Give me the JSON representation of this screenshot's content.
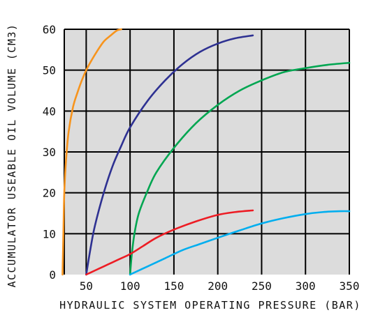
{
  "chart_data": {
    "type": "line",
    "xlabel": "HYDRAULIC SYSTEM OPERATING PRESSURE (BAR)",
    "ylabel": "ACCUMULATOR USEABLE OIL VOLUME (CM3)",
    "xlim": [
      25,
      350
    ],
    "ylim": [
      0,
      60
    ],
    "x_ticks": [
      50,
      100,
      150,
      200,
      250,
      300,
      350
    ],
    "y_ticks": [
      0,
      10,
      20,
      30,
      40,
      50,
      60
    ],
    "grid": true,
    "plot_background": "#dcdcdc",
    "series": [
      {
        "color": "#f7941d",
        "x": [
          23,
          24,
          25,
          27,
          30,
          35,
          40,
          45,
          50,
          55,
          62,
          70,
          78,
          85,
          90
        ],
        "y": [
          0,
          10,
          20,
          28,
          35,
          41,
          44.5,
          47.5,
          50,
          52,
          54.5,
          57,
          58.5,
          59.7,
          60
        ]
      },
      {
        "color": "#2e3192",
        "x": [
          50,
          55,
          60,
          70,
          80,
          90,
          100,
          120,
          140,
          160,
          180,
          200,
          220,
          240
        ],
        "y": [
          0,
          6.5,
          12,
          20,
          26.5,
          31.5,
          36,
          42.5,
          47.5,
          51.5,
          54.5,
          56.5,
          57.8,
          58.5
        ]
      },
      {
        "color": "#00a651",
        "x": [
          100,
          102,
          105,
          110,
          120,
          130,
          150,
          175,
          200,
          225,
          250,
          275,
          300,
          325,
          350
        ],
        "y": [
          0,
          5,
          10,
          15,
          20.5,
          25,
          31,
          37,
          41.5,
          45,
          47.5,
          49.5,
          50.5,
          51.3,
          51.8
        ]
      },
      {
        "color": "#ed1c24",
        "x": [
          50,
          60,
          70,
          80,
          90,
          100,
          115,
          130,
          150,
          175,
          200,
          220,
          240
        ],
        "y": [
          0,
          1,
          2,
          3,
          4,
          5,
          7,
          9,
          11,
          13,
          14.6,
          15.3,
          15.7
        ]
      },
      {
        "color": "#00aeef",
        "x": [
          100,
          120,
          140,
          160,
          180,
          200,
          225,
          250,
          275,
          300,
          320,
          340,
          350
        ],
        "y": [
          0,
          2,
          4,
          6,
          7.5,
          9,
          10.8,
          12.5,
          13.8,
          14.8,
          15.3,
          15.5,
          15.5
        ]
      }
    ]
  }
}
